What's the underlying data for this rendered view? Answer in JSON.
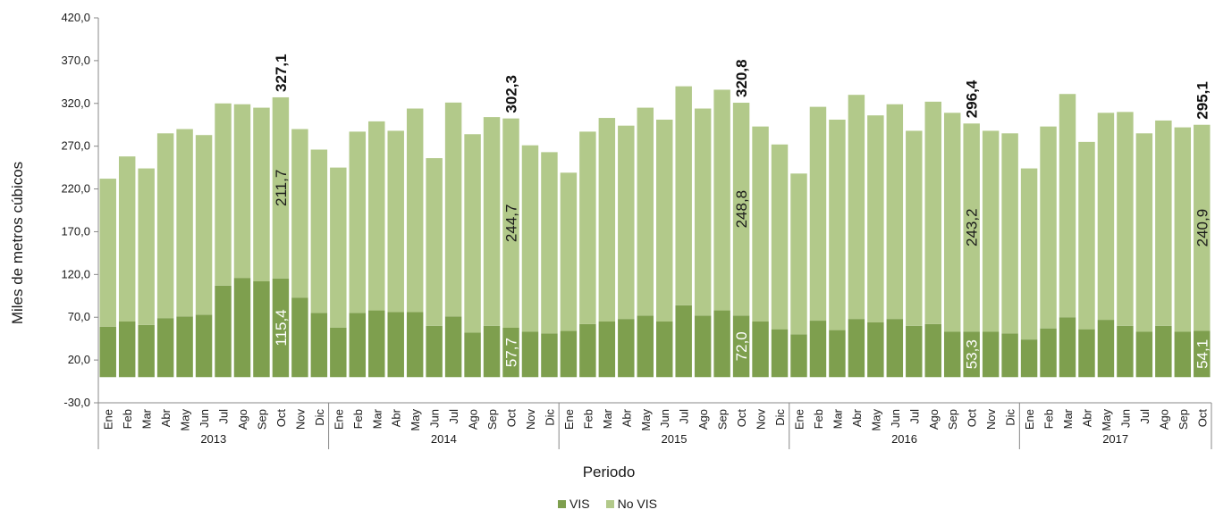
{
  "colors": {
    "vis": "#7e9f4e",
    "no_vis": "#b2c98a",
    "axis": "#888888"
  },
  "chart_data": {
    "type": "bar",
    "stacked": true,
    "xlabel": "Periodo",
    "ylabel": "Miles de metros cúbicos",
    "ylim": [
      -30,
      420
    ],
    "yticks": [
      "420,0",
      "370,0",
      "320,0",
      "270,0",
      "220,0",
      "170,0",
      "120,0",
      "70,0",
      "20,0",
      "-30,0"
    ],
    "legend": {
      "position": "bottom",
      "entries": [
        "VIS",
        "No VIS"
      ]
    },
    "years": [
      {
        "label": "2013",
        "months": [
          "Ene",
          "Feb",
          "Mar",
          "Abr",
          "May",
          "Jun",
          "Jul",
          "Ago",
          "Sep",
          "Oct",
          "Nov",
          "Dic"
        ]
      },
      {
        "label": "2014",
        "months": [
          "Ene",
          "Feb",
          "Mar",
          "Abr",
          "May",
          "Jun",
          "Jul",
          "Ago",
          "Sep",
          "Oct",
          "Nov",
          "Dic"
        ]
      },
      {
        "label": "2015",
        "months": [
          "Ene",
          "Feb",
          "Mar",
          "Abr",
          "May",
          "Jun",
          "Jul",
          "Ago",
          "Sep",
          "Oct",
          "Nov",
          "Dic"
        ]
      },
      {
        "label": "2016",
        "months": [
          "Ene",
          "Feb",
          "Mar",
          "Abr",
          "May",
          "Jun",
          "Jul",
          "Ago",
          "Sep",
          "Oct",
          "Nov",
          "Dic"
        ]
      },
      {
        "label": "2017",
        "months": [
          "Ene",
          "Feb",
          "Mar",
          "Abr",
          "May",
          "Jun",
          "Jul",
          "Ago",
          "Sep",
          "Oct"
        ]
      }
    ],
    "series": [
      {
        "name": "VIS",
        "values": [
          59,
          65,
          61,
          69,
          71,
          73,
          107,
          116,
          112,
          115.4,
          93,
          75,
          58,
          75,
          78,
          76,
          76,
          60,
          71,
          52,
          60,
          57.7,
          53,
          51,
          54,
          62,
          65,
          68,
          72,
          65,
          84,
          72,
          78,
          72.0,
          65,
          56,
          50,
          66,
          55,
          68,
          64,
          68,
          60,
          62,
          53,
          53.3,
          53,
          51,
          44,
          57,
          70,
          56,
          67,
          60,
          53,
          60,
          53,
          54.1
        ]
      },
      {
        "name": "No VIS",
        "values": [
          173,
          193,
          183,
          216,
          219,
          210,
          213,
          203,
          203,
          211.7,
          197,
          191,
          187,
          212,
          221,
          212,
          238,
          196,
          250,
          232,
          244,
          244.7,
          218,
          212,
          185,
          225,
          238,
          226,
          243,
          236,
          256,
          242,
          258,
          248.8,
          228,
          216,
          188,
          250,
          246,
          262,
          242,
          251,
          228,
          260,
          256,
          243.2,
          235,
          234,
          200,
          236,
          261,
          219,
          242,
          250,
          232,
          240,
          239,
          240.9
        ]
      }
    ],
    "annotations": [
      {
        "index": 9,
        "total": "327,1",
        "no_vis": "211,7",
        "vis": "115,4"
      },
      {
        "index": 21,
        "total": "302,3",
        "no_vis": "244,7",
        "vis": "57,7"
      },
      {
        "index": 33,
        "total": "320,8",
        "no_vis": "248,8",
        "vis": "72,0"
      },
      {
        "index": 45,
        "total": "296,4",
        "no_vis": "243,2",
        "vis": "53,3"
      },
      {
        "index": 57,
        "total": "295,1",
        "no_vis": "240,9",
        "vis": "54,1"
      }
    ]
  }
}
